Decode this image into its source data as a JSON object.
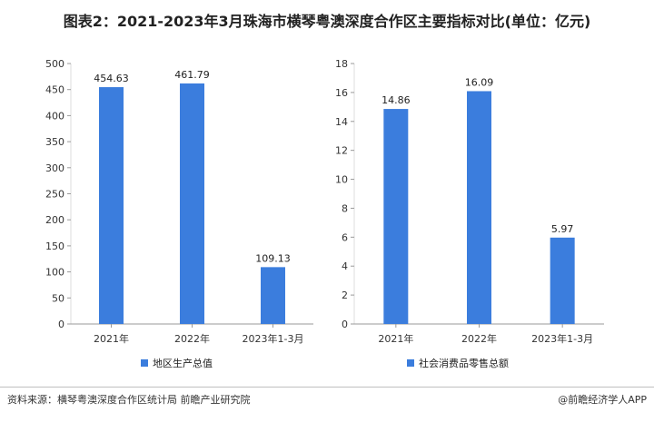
{
  "title": "图表2：2021-2023年3月珠海市横琴粤澳深度合作区主要指标对比(单位：亿元)",
  "source": "资料来源：横琴粤澳深度合作区统计局 前瞻产业研究院",
  "brand": "@前瞻经济学人APP",
  "colors": {
    "bar": "#3b7ddd",
    "grid": "#dddddd",
    "axis": "#999999"
  },
  "chart_data": [
    {
      "type": "bar",
      "categories": [
        "2021年",
        "2022年",
        "2023年1-3月"
      ],
      "series": [
        {
          "name": "地区生产总值",
          "values": [
            454.63,
            461.79,
            109.13
          ]
        }
      ],
      "value_labels": [
        "454.63",
        "461.79",
        "109.13"
      ],
      "ylim": [
        0,
        500
      ],
      "yticks": [
        0,
        50,
        100,
        150,
        200,
        250,
        300,
        350,
        400,
        450,
        500
      ],
      "grid": false,
      "legend": "bottom"
    },
    {
      "type": "bar",
      "categories": [
        "2021年",
        "2022年",
        "2023年1-3月"
      ],
      "series": [
        {
          "name": "社会消费品零售总额",
          "values": [
            14.86,
            16.09,
            5.97
          ]
        }
      ],
      "value_labels": [
        "14.86",
        "16.09",
        "5.97"
      ],
      "ylim": [
        0,
        18
      ],
      "yticks": [
        0,
        2,
        4,
        6,
        8,
        10,
        12,
        14,
        16,
        18
      ],
      "grid": false,
      "legend": "bottom"
    }
  ]
}
